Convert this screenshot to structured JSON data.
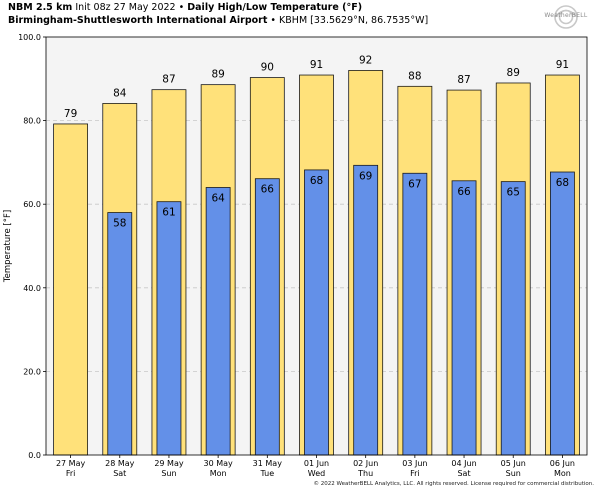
{
  "header": {
    "model": "NBM 2.5 km",
    "init": "Init 08z 27 May 2022",
    "product": "Daily High/Low Temperature (°F)",
    "station_name": "Birmingham-Shuttlesworth International Airport",
    "station_id": "KBHM [33.5629°N, 86.7535°W]",
    "bullet": "•"
  },
  "logo": {
    "text": "WeatherBELL",
    "icon": "swirl-logo-icon"
  },
  "footer": {
    "text": "© 2022 WeatherBELL Analytics, LLC. All rights reserved. License required for commercial distribution."
  },
  "colors": {
    "high": "#ffe17a",
    "low": "#6390e8",
    "bar_edge": "#1a1a1a",
    "plot_bg": "#f4f4f4",
    "grid": "#c8c8c8"
  },
  "chart_data": {
    "type": "bar",
    "ylabel": "Temperature [°F]",
    "ylim": [
      0,
      100
    ],
    "yticks": [
      "0.0",
      "20.0",
      "40.0",
      "60.0",
      "80.0",
      "100.0"
    ],
    "ytick_values": [
      0,
      20,
      40,
      60,
      80,
      100
    ],
    "grid": true,
    "categories": [
      [
        "27 May",
        "Fri"
      ],
      [
        "28 May",
        "Sat"
      ],
      [
        "29 May",
        "Sun"
      ],
      [
        "30 May",
        "Mon"
      ],
      [
        "31 May",
        "Tue"
      ],
      [
        "01 Jun",
        "Wed"
      ],
      [
        "02 Jun",
        "Thu"
      ],
      [
        "03 Jun",
        "Fri"
      ],
      [
        "04 Jun",
        "Sat"
      ],
      [
        "05 Jun",
        "Sun"
      ],
      [
        "06 Jun",
        "Mon"
      ]
    ],
    "series": [
      {
        "values": [
          79.2,
          84.1,
          87.4,
          88.6,
          90.3,
          90.9,
          92.0,
          88.2,
          87.3,
          89.0,
          90.9
        ],
        "labels": [
          "79",
          "84",
          "87",
          "89",
          "90",
          "91",
          "92",
          "88",
          "87",
          "89",
          "91"
        ]
      },
      {
        "values": [
          null,
          58.0,
          60.6,
          64.0,
          66.1,
          68.2,
          69.3,
          67.4,
          65.6,
          65.4,
          67.7
        ],
        "labels": [
          null,
          "58",
          "61",
          "64",
          "66",
          "68",
          "69",
          "67",
          "66",
          "65",
          "68"
        ]
      }
    ]
  }
}
